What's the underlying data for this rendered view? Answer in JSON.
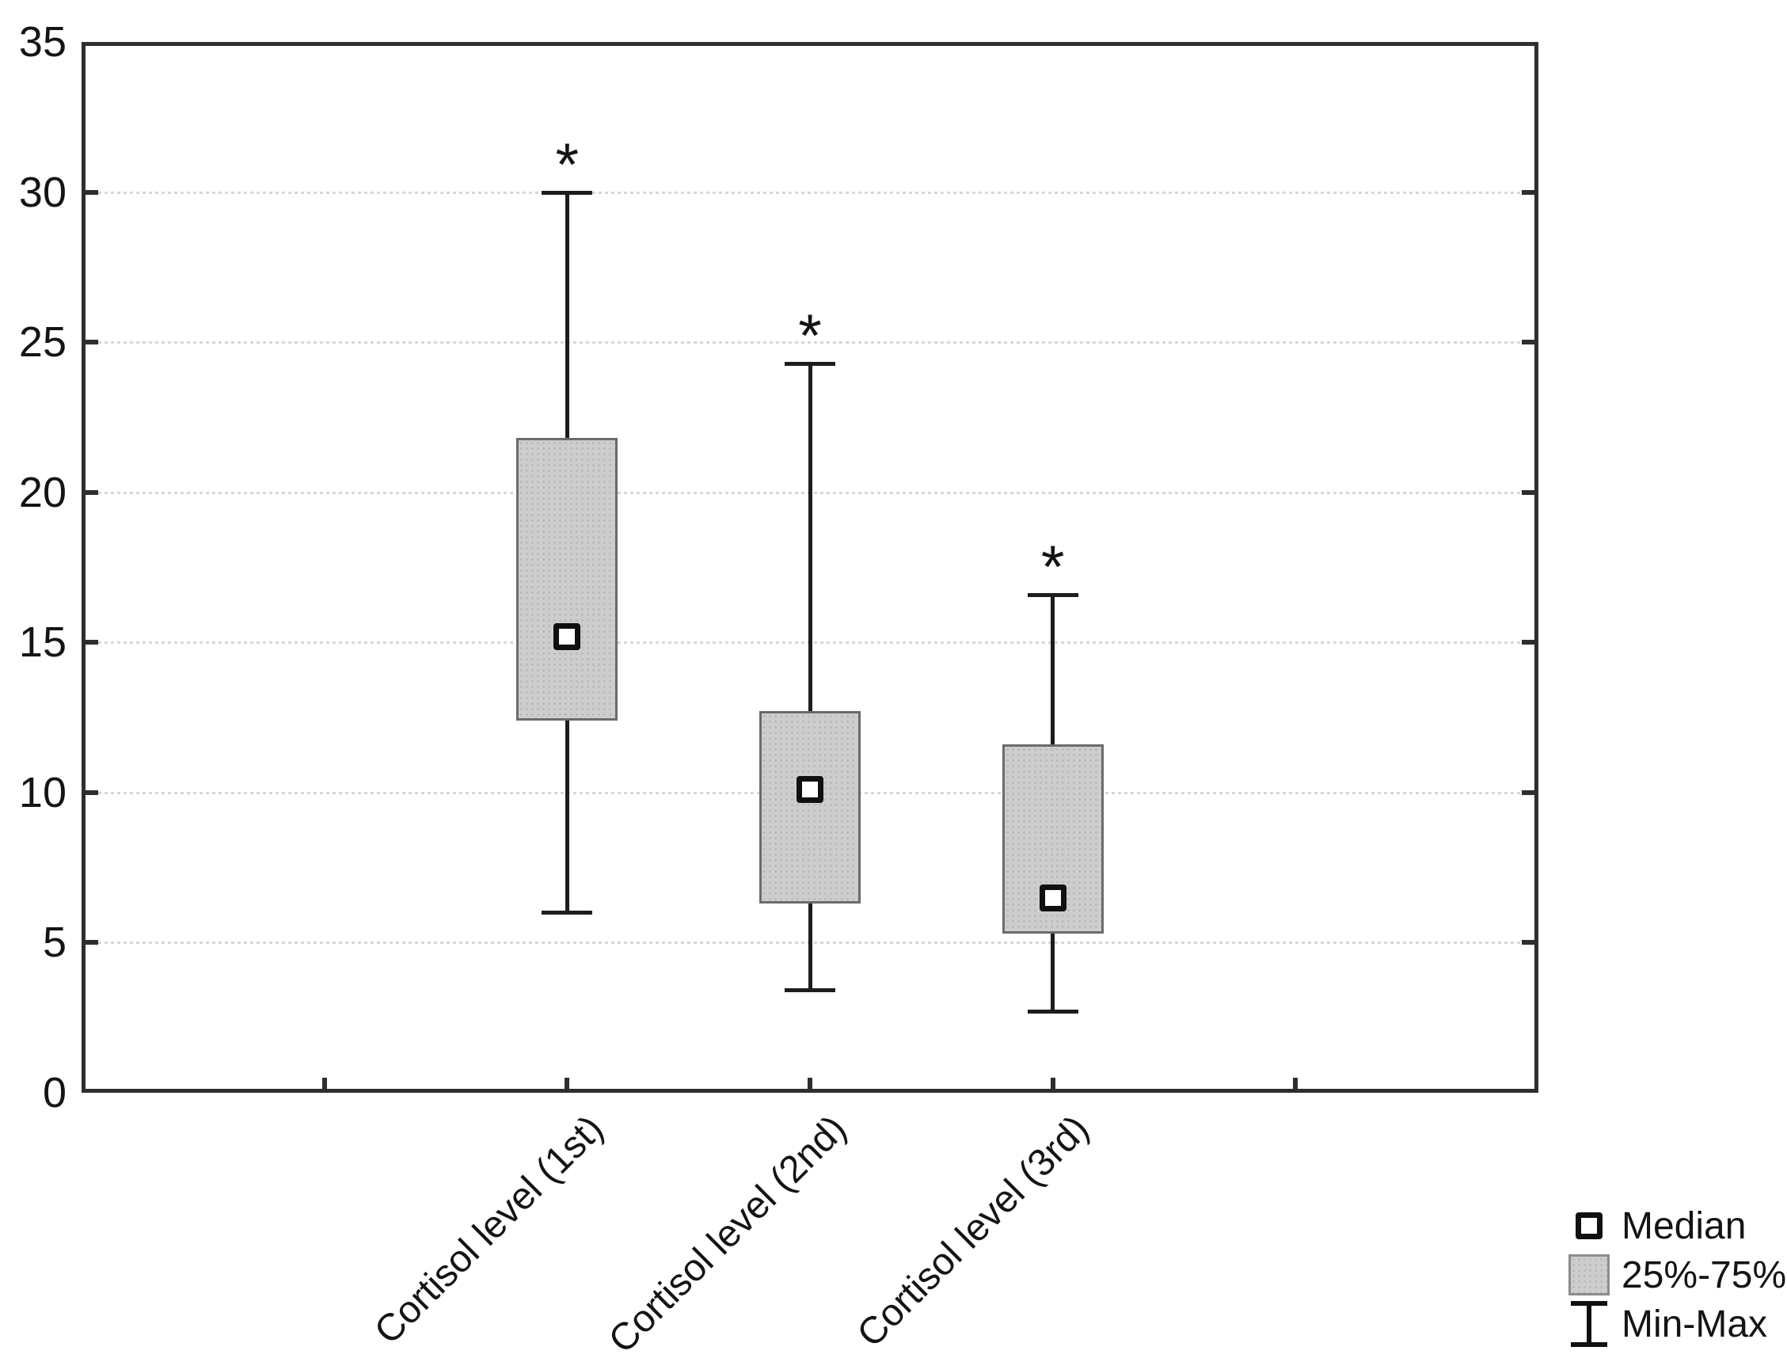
{
  "figure": {
    "background": "#ffffff"
  },
  "chart_data": {
    "type": "boxplot",
    "title": "",
    "xlabel": "",
    "ylabel": "",
    "categories": [
      "Cortisol level (1st)",
      "Cortisol level (2nd)",
      "Cortisol level (3rd)"
    ],
    "series": [
      {
        "min": 6.0,
        "q1": 12.4,
        "median": 15.2,
        "q3": 21.8,
        "max": 30.0,
        "annotation": "*"
      },
      {
        "min": 3.4,
        "q1": 6.3,
        "median": 10.1,
        "q3": 12.7,
        "max": 24.3,
        "annotation": "*"
      },
      {
        "min": 2.7,
        "q1": 5.3,
        "median": 6.5,
        "q3": 11.6,
        "max": 16.6,
        "annotation": "*"
      }
    ],
    "ylim": [
      0,
      35
    ],
    "yticks": [
      0,
      5,
      10,
      15,
      20,
      25,
      30,
      35
    ],
    "ygridlines": [
      5,
      10,
      15,
      20,
      25,
      30
    ],
    "grid_style": "dotted-horizontal",
    "legend_position": "bottom-right",
    "legend": [
      {
        "icon": "median-square-icon",
        "label": "Median"
      },
      {
        "icon": "iqr-box-icon",
        "label": "25%-75%"
      },
      {
        "icon": "minmax-whisker-icon",
        "label": "Min-Max"
      }
    ]
  },
  "colors": {
    "box_fill": "#cdcdcd",
    "box_border": "#6b6b6b",
    "frame": "#2e2e2e",
    "gridline": "#d7d7d7",
    "ink": "#141414",
    "median_fill": "#ffffff"
  }
}
